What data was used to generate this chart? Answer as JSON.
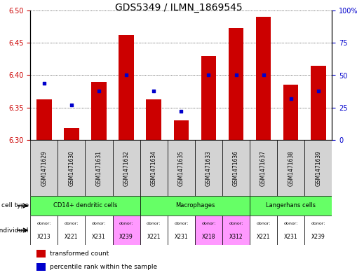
{
  "title": "GDS5349 / ILMN_1869545",
  "samples": [
    "GSM1471629",
    "GSM1471630",
    "GSM1471631",
    "GSM1471632",
    "GSM1471634",
    "GSM1471635",
    "GSM1471633",
    "GSM1471636",
    "GSM1471637",
    "GSM1471638",
    "GSM1471639"
  ],
  "transformed_counts": [
    6.363,
    6.318,
    6.39,
    6.462,
    6.363,
    6.33,
    6.43,
    6.473,
    6.49,
    6.385,
    6.415
  ],
  "percentile_ranks": [
    44,
    27,
    38,
    50,
    38,
    22,
    50,
    50,
    50,
    32,
    38
  ],
  "ylim_left": [
    6.3,
    6.5
  ],
  "ylim_right": [
    0,
    100
  ],
  "yticks_left": [
    6.3,
    6.35,
    6.4,
    6.45,
    6.5
  ],
  "yticks_right": [
    0,
    25,
    50,
    75,
    100
  ],
  "ytick_labels_right": [
    "0",
    "25",
    "50",
    "75",
    "100%"
  ],
  "bar_color": "#cc0000",
  "dot_color": "#0000cc",
  "cell_groups": [
    {
      "label": "CD14+ dendritic cells",
      "start": 0,
      "end": 4
    },
    {
      "label": "Macrophages",
      "start": 4,
      "end": 8
    },
    {
      "label": "Langerhans cells",
      "start": 8,
      "end": 11
    }
  ],
  "cell_type_color": "#66ff66",
  "gsm_bg_color": "#d3d3d3",
  "donors": [
    "X213",
    "X221",
    "X231",
    "X239",
    "X221",
    "X231",
    "X218",
    "X312",
    "X221",
    "X231",
    "X239"
  ],
  "donor_colors": [
    "#ffffff",
    "#ffffff",
    "#ffffff",
    "#ff99ff",
    "#ffffff",
    "#ffffff",
    "#ff99ff",
    "#ff99ff",
    "#ffffff",
    "#ffffff",
    "#ffffff"
  ],
  "left_axis_color": "#cc0000",
  "right_axis_color": "#0000cc",
  "title_fontsize": 10,
  "axis_fontsize": 7,
  "sample_fontsize": 5.5,
  "table_fontsize": 6,
  "legend_fontsize": 6.5
}
